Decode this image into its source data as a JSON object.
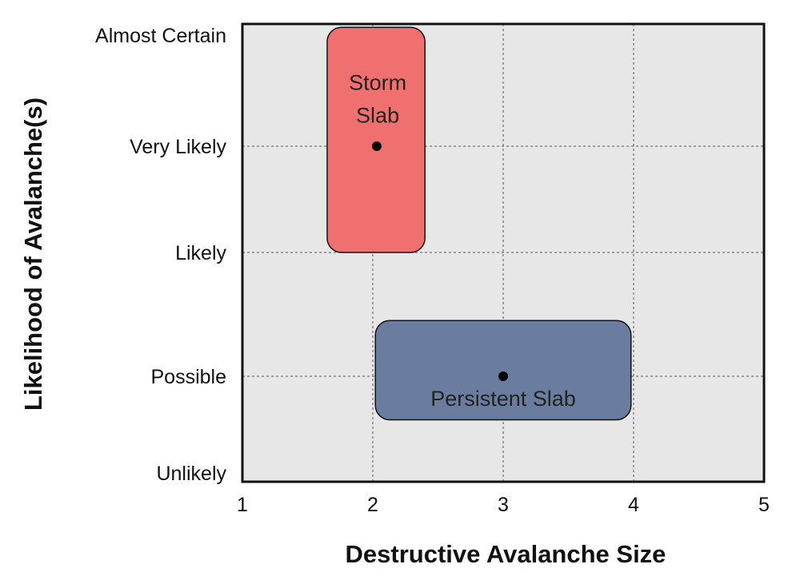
{
  "chart_data": {
    "type": "scatter",
    "title": "",
    "xlabel": "Destructive Avalanche Size",
    "ylabel": "Likelihood of Avalanche(s)",
    "xlim": [
      1,
      5
    ],
    "x_ticks": [
      "1",
      "2",
      "3",
      "4",
      "5"
    ],
    "y_categories": [
      "Unlikely",
      "Possible",
      "Likely",
      "Very Likely",
      "Almost Certain"
    ],
    "grid": true,
    "regions": [
      {
        "label": "Storm Slab",
        "label_lines": [
          "Storm",
          "Slab"
        ],
        "color": "#f07070",
        "x_range": [
          1.65,
          2.4
        ],
        "y_range": [
          2.0,
          4.07
        ],
        "center": {
          "x": 2.03,
          "y": 3.0
        }
      },
      {
        "label": "Persistent Slab",
        "label_lines": [
          "Persistent Slab"
        ],
        "color": "#6b7d9e",
        "x_range": [
          2.02,
          3.98
        ],
        "y_range": [
          0.55,
          1.45
        ],
        "center": {
          "x": 3.0,
          "y": 1.0
        }
      }
    ]
  }
}
